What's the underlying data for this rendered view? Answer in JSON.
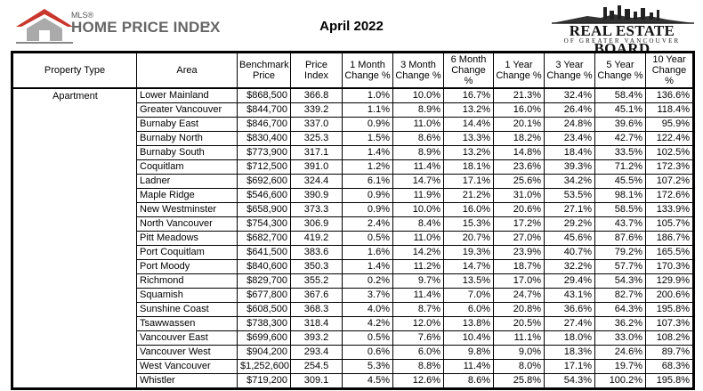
{
  "header": {
    "logo_small": "MLS®",
    "logo": "HOME PRICE INDEX",
    "logo_mark": "*",
    "title": "April 2022",
    "board": "REAL ESTATE BOARD",
    "board_sub": "OF GREATER VANCOUVER"
  },
  "table": {
    "headers": [
      "Property Type",
      "Area",
      "Benchmark Price",
      "Price Index",
      "1 Month Change %",
      "3 Month Change %",
      "6 Month Change %",
      "1 Year Change %",
      "3 Year Change %",
      "5 Year Change %",
      "10 Year Change %"
    ],
    "property_type": "Apartment",
    "rows": [
      [
        "Lower Mainland",
        "$868,500",
        "366.8",
        "1.0%",
        "10.0%",
        "16.7%",
        "21.3%",
        "32.4%",
        "58.4%",
        "136.6%"
      ],
      [
        "Greater Vancouver",
        "$844,700",
        "339.2",
        "1.1%",
        "8.9%",
        "13.2%",
        "16.0%",
        "26.4%",
        "45.1%",
        "118.4%"
      ],
      [
        "Burnaby East",
        "$846,700",
        "337.0",
        "0.9%",
        "11.0%",
        "14.4%",
        "20.1%",
        "24.8%",
        "39.6%",
        "95.9%"
      ],
      [
        "Burnaby North",
        "$830,400",
        "325.3",
        "1.5%",
        "8.6%",
        "13.3%",
        "18.2%",
        "23.4%",
        "42.7%",
        "122.4%"
      ],
      [
        "Burnaby South",
        "$773,900",
        "317.1",
        "1.4%",
        "8.9%",
        "13.2%",
        "14.8%",
        "18.4%",
        "33.5%",
        "102.5%"
      ],
      [
        "Coquitlam",
        "$712,500",
        "391.0",
        "1.2%",
        "11.4%",
        "18.1%",
        "23.6%",
        "39.3%",
        "71.2%",
        "172.3%"
      ],
      [
        "Ladner",
        "$692,600",
        "324.4",
        "6.1%",
        "14.7%",
        "17.1%",
        "25.6%",
        "34.2%",
        "45.5%",
        "107.2%"
      ],
      [
        "Maple Ridge",
        "$546,600",
        "390.9",
        "0.9%",
        "11.9%",
        "21.2%",
        "31.0%",
        "53.5%",
        "98.1%",
        "172.6%"
      ],
      [
        "New Westminster",
        "$658,900",
        "373.3",
        "0.9%",
        "10.0%",
        "16.0%",
        "20.6%",
        "27.1%",
        "58.5%",
        "133.9%"
      ],
      [
        "North Vancouver",
        "$754,300",
        "306.9",
        "2.4%",
        "8.4%",
        "15.3%",
        "17.2%",
        "29.2%",
        "43.7%",
        "105.7%"
      ],
      [
        "Pitt Meadows",
        "$682,700",
        "419.2",
        "0.5%",
        "11.0%",
        "20.7%",
        "27.0%",
        "45.6%",
        "87.6%",
        "186.7%"
      ],
      [
        "Port Coquitlam",
        "$641,500",
        "383.6",
        "1.6%",
        "14.2%",
        "19.3%",
        "23.9%",
        "40.7%",
        "79.2%",
        "165.5%"
      ],
      [
        "Port Moody",
        "$840,600",
        "350.3",
        "1.4%",
        "11.2%",
        "14.7%",
        "18.7%",
        "32.2%",
        "57.7%",
        "170.3%"
      ],
      [
        "Richmond",
        "$829,700",
        "355.2",
        "0.2%",
        "9.7%",
        "13.5%",
        "17.0%",
        "29.4%",
        "54.3%",
        "129.9%"
      ],
      [
        "Squamish",
        "$677,800",
        "367.6",
        "3.7%",
        "11.4%",
        "7.0%",
        "24.7%",
        "43.1%",
        "82.7%",
        "200.6%"
      ],
      [
        "Sunshine Coast",
        "$608,500",
        "368.3",
        "4.0%",
        "8.7%",
        "6.0%",
        "20.8%",
        "36.6%",
        "64.3%",
        "195.8%"
      ],
      [
        "Tsawwassen",
        "$738,300",
        "318.4",
        "4.2%",
        "12.0%",
        "13.8%",
        "20.5%",
        "27.4%",
        "36.2%",
        "107.3%"
      ],
      [
        "Vancouver East",
        "$699,600",
        "393.2",
        "0.5%",
        "7.6%",
        "10.4%",
        "11.1%",
        "18.0%",
        "33.0%",
        "108.2%"
      ],
      [
        "Vancouver West",
        "$904,200",
        "293.4",
        "0.6%",
        "6.0%",
        "9.8%",
        "9.0%",
        "18.3%",
        "24.6%",
        "89.7%"
      ],
      [
        "West Vancouver",
        "$1,252,600",
        "254.5",
        "5.3%",
        "8.8%",
        "11.4%",
        "8.0%",
        "17.1%",
        "19.7%",
        "68.3%"
      ],
      [
        "Whistler",
        "$719,200",
        "309.1",
        "4.5%",
        "12.6%",
        "8.6%",
        "25.8%",
        "54.3%",
        "100.2%",
        "195.8%"
      ]
    ]
  }
}
